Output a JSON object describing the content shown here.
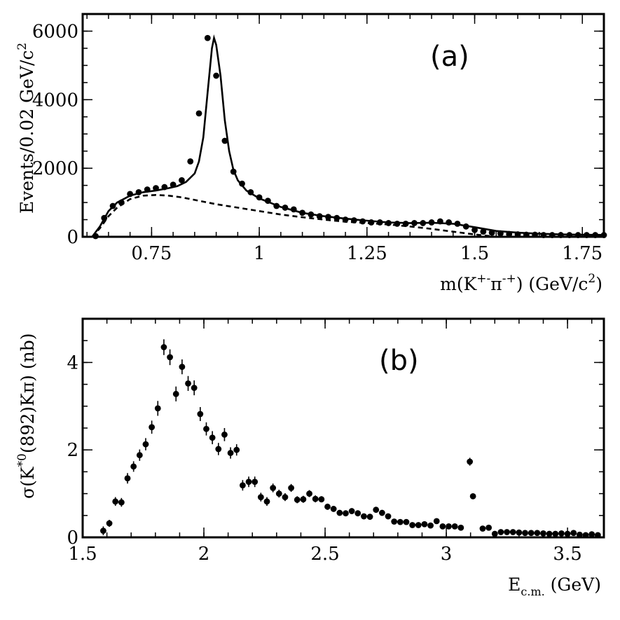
{
  "chart_data": [
    {
      "panel": "(a)",
      "type": "scatter",
      "xlabel": "m(K+- π-+) (GeV/c2)",
      "ylabel": "Events/0.02 GeV/c2",
      "xlim": [
        0.59,
        1.8
      ],
      "ylim": [
        0,
        6500
      ],
      "x_ticks": [
        0.75,
        1,
        1.25,
        1.5,
        1.75
      ],
      "y_ticks": [
        0,
        2000,
        4000,
        6000
      ],
      "grid": false,
      "series": [
        {
          "kind": "data-points",
          "x": [
            0.62,
            0.64,
            0.66,
            0.68,
            0.7,
            0.72,
            0.74,
            0.76,
            0.78,
            0.8,
            0.82,
            0.84,
            0.86,
            0.88,
            0.9,
            0.92,
            0.94,
            0.96,
            0.98,
            1.0,
            1.02,
            1.04,
            1.06,
            1.08,
            1.1,
            1.12,
            1.14,
            1.16,
            1.18,
            1.2,
            1.22,
            1.24,
            1.26,
            1.28,
            1.3,
            1.32,
            1.34,
            1.36,
            1.38,
            1.4,
            1.42,
            1.44,
            1.46,
            1.48,
            1.5,
            1.52,
            1.54,
            1.56,
            1.58,
            1.6,
            1.62,
            1.64,
            1.66,
            1.68,
            1.7,
            1.72,
            1.74,
            1.76,
            1.78,
            1.8
          ],
          "y": [
            20,
            550,
            900,
            1000,
            1250,
            1300,
            1380,
            1420,
            1450,
            1520,
            1650,
            2200,
            3600,
            5800,
            4700,
            2800,
            1900,
            1550,
            1300,
            1150,
            1050,
            900,
            850,
            800,
            700,
            650,
            600,
            580,
            550,
            500,
            480,
            450,
            420,
            420,
            400,
            380,
            380,
            400,
            400,
            420,
            450,
            420,
            380,
            300,
            200,
            150,
            120,
            100,
            80,
            70,
            60,
            60,
            50,
            50,
            50,
            50,
            50,
            50,
            50,
            50
          ],
          "yerr": [
            15,
            30,
            35,
            35,
            40,
            40,
            42,
            42,
            42,
            44,
            45,
            50,
            65,
            80,
            70,
            55,
            48,
            42,
            40,
            38,
            36,
            34,
            33,
            32,
            30,
            29,
            28,
            27,
            26,
            25,
            25,
            24,
            23,
            23,
            22,
            22,
            22,
            22,
            22,
            23,
            23,
            23,
            22,
            20,
            17,
            15,
            14,
            13,
            12,
            11,
            10,
            10,
            10,
            10,
            10,
            10,
            10,
            10,
            10,
            10
          ]
        },
        {
          "kind": "fit-total",
          "x": [
            0.612,
            0.63,
            0.65,
            0.67,
            0.7,
            0.73,
            0.76,
            0.79,
            0.81,
            0.83,
            0.85,
            0.86,
            0.87,
            0.88,
            0.89,
            0.895,
            0.9,
            0.91,
            0.92,
            0.93,
            0.94,
            0.95,
            0.97,
            1.0,
            1.05,
            1.1,
            1.15,
            1.2,
            1.25,
            1.3,
            1.35,
            1.4,
            1.45,
            1.5,
            1.55,
            1.6,
            1.65,
            1.7,
            1.75,
            1.8
          ],
          "y": [
            0,
            300,
            750,
            1000,
            1200,
            1300,
            1350,
            1420,
            1480,
            1600,
            1850,
            2200,
            2900,
            4200,
            5500,
            5800,
            5600,
            4700,
            3400,
            2500,
            1950,
            1650,
            1350,
            1120,
            870,
            700,
            600,
            530,
            470,
            420,
            400,
            410,
            380,
            280,
            170,
            120,
            90,
            70,
            60,
            55
          ]
        },
        {
          "kind": "background",
          "x": [
            0.612,
            0.63,
            0.65,
            0.67,
            0.7,
            0.73,
            0.76,
            0.79,
            0.82,
            0.86,
            0.9,
            0.95,
            1.0,
            1.05,
            1.1,
            1.15,
            1.2,
            1.25,
            1.3,
            1.35,
            1.4,
            1.45,
            1.5,
            1.55
          ],
          "y": [
            0,
            250,
            600,
            850,
            1100,
            1200,
            1220,
            1200,
            1150,
            1050,
            950,
            850,
            750,
            650,
            570,
            500,
            440,
            400,
            360,
            300,
            230,
            150,
            70,
            0
          ]
        }
      ]
    },
    {
      "panel": "(b)",
      "type": "scatter",
      "xlabel": "Ec.m. (GeV)",
      "ylabel": "σ(K*0(892)Kπ) (nb)",
      "xlim": [
        1.5,
        3.65
      ],
      "ylim": [
        0,
        5
      ],
      "x_ticks": [
        1.5,
        2,
        2.5,
        3,
        3.5
      ],
      "y_ticks": [
        0,
        2,
        4
      ],
      "grid": false,
      "series": [
        {
          "kind": "data-points",
          "x": [
            1.585,
            1.61,
            1.635,
            1.66,
            1.685,
            1.71,
            1.735,
            1.76,
            1.785,
            1.81,
            1.835,
            1.86,
            1.885,
            1.91,
            1.935,
            1.96,
            1.985,
            2.01,
            2.035,
            2.06,
            2.085,
            2.11,
            2.135,
            2.16,
            2.185,
            2.21,
            2.235,
            2.26,
            2.285,
            2.31,
            2.335,
            2.36,
            2.385,
            2.41,
            2.435,
            2.46,
            2.485,
            2.51,
            2.535,
            2.56,
            2.585,
            2.61,
            2.635,
            2.66,
            2.685,
            2.71,
            2.735,
            2.76,
            2.785,
            2.81,
            2.835,
            2.86,
            2.885,
            2.91,
            2.935,
            2.96,
            2.985,
            3.01,
            3.035,
            3.06,
            3.097,
            3.11,
            3.15,
            3.175,
            3.2,
            3.225,
            3.25,
            3.275,
            3.3,
            3.325,
            3.35,
            3.375,
            3.4,
            3.425,
            3.45,
            3.475,
            3.5,
            3.525,
            3.55,
            3.575,
            3.6,
            3.625
          ],
          "y": [
            0.15,
            0.32,
            0.82,
            0.8,
            1.35,
            1.62,
            1.88,
            2.13,
            2.52,
            2.95,
            4.35,
            4.12,
            3.28,
            3.9,
            3.52,
            3.42,
            2.82,
            2.48,
            2.28,
            2.02,
            2.35,
            1.93,
            2.0,
            1.19,
            1.27,
            1.27,
            0.92,
            0.82,
            1.13,
            1.0,
            0.92,
            1.13,
            0.86,
            0.87,
            1.0,
            0.88,
            0.87,
            0.7,
            0.65,
            0.56,
            0.55,
            0.6,
            0.55,
            0.48,
            0.47,
            0.63,
            0.56,
            0.48,
            0.36,
            0.35,
            0.35,
            0.28,
            0.28,
            0.3,
            0.27,
            0.37,
            0.25,
            0.25,
            0.25,
            0.22,
            1.73,
            0.94,
            0.2,
            0.22,
            0.08,
            0.12,
            0.12,
            0.12,
            0.11,
            0.1,
            0.1,
            0.1,
            0.09,
            0.08,
            0.08,
            0.09,
            0.08,
            0.1,
            0.06,
            0.05,
            0.07,
            0.05
          ],
          "yerr": [
            0.1,
            0.08,
            0.1,
            0.1,
            0.12,
            0.12,
            0.13,
            0.14,
            0.15,
            0.17,
            0.18,
            0.18,
            0.17,
            0.17,
            0.17,
            0.17,
            0.16,
            0.15,
            0.15,
            0.14,
            0.15,
            0.13,
            0.13,
            0.12,
            0.12,
            0.12,
            0.1,
            0.1,
            0.1,
            0.09,
            0.09,
            0.09,
            0.08,
            0.08,
            0.08,
            0.08,
            0.07,
            0.07,
            0.06,
            0.06,
            0.06,
            0.06,
            0.06,
            0.05,
            0.05,
            0.06,
            0.05,
            0.05,
            0.04,
            0.04,
            0.04,
            0.04,
            0.04,
            0.04,
            0.04,
            0.04,
            0.03,
            0.03,
            0.03,
            0.03,
            0.09,
            0.06,
            0.03,
            0.03,
            0.02,
            0.02,
            0.02,
            0.02,
            0.02,
            0.02,
            0.02,
            0.02,
            0.02,
            0.02,
            0.02,
            0.02,
            0.02,
            0.02,
            0.02,
            0.02,
            0.02,
            0.02
          ]
        }
      ]
    }
  ],
  "labels": {
    "panel_a": {
      "tag": "(a)",
      "ylabel_main": "Events/0.02 GeV/c",
      "ylabel_sup": "2",
      "xlabel_m": "m(K",
      "xlabel_sup1": "+-",
      "xlabel_pi": "π",
      "xlabel_sup2": "-+",
      "xlabel_rest": ") (GeV/c",
      "xlabel_sup3": "2",
      "xlabel_close": ")"
    },
    "panel_b": {
      "tag": "(b)",
      "ylabel_start": "σ(K",
      "ylabel_sup": "*0",
      "ylabel_rest": "(892)Kπ) (nb)",
      "xlabel_E": "E",
      "xlabel_sub": "c.m.",
      "xlabel_rest": " (GeV)"
    }
  }
}
